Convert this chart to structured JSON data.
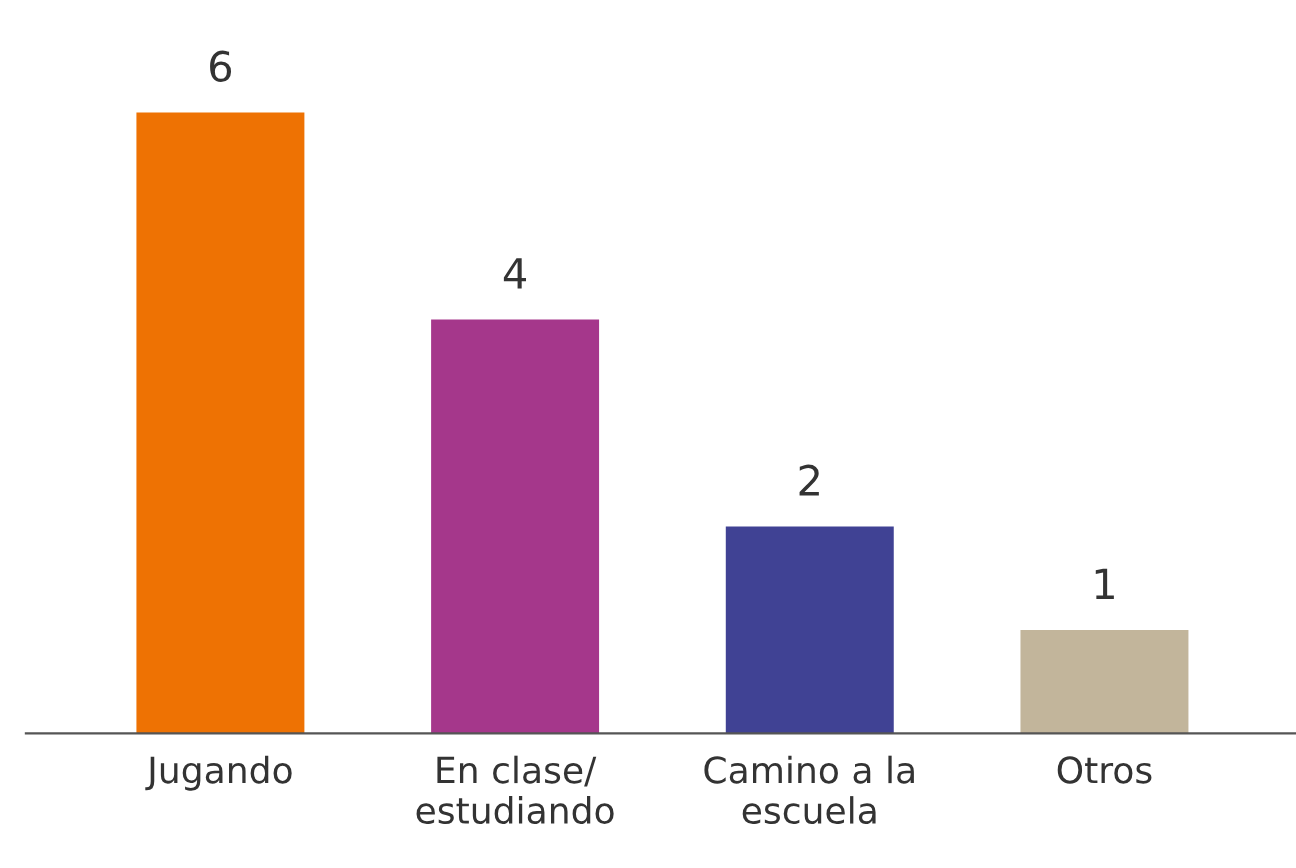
{
  "chart_data": {
    "type": "bar",
    "categories": [
      "Jugando",
      "En clase/\nestudiando",
      "Camino a la\nescuela",
      "Otros"
    ],
    "values": [
      6,
      4,
      2,
      1
    ],
    "colors": [
      "#ee7203",
      "#a5378b",
      "#404294",
      "#c2b59b"
    ],
    "data_labels": true,
    "grid": false,
    "legend": false
  }
}
